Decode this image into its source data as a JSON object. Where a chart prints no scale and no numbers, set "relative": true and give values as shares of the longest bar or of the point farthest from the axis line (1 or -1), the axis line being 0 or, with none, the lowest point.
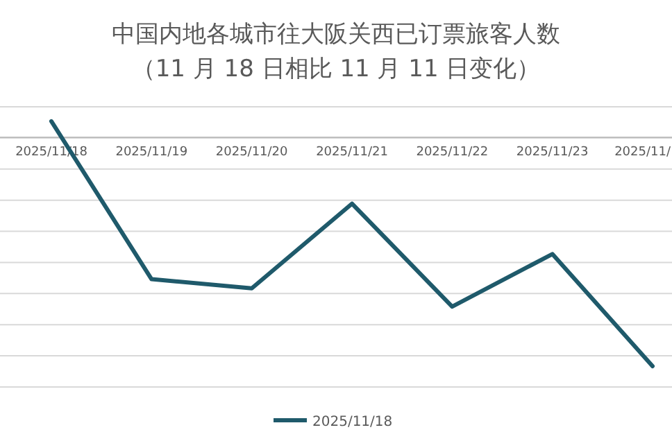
{
  "chart_data": {
    "type": "line",
    "title": "中国内地各城市往大阪关西已订票旅客人数",
    "subtitle": "（11 月 18 日相比 11 月 11 日变化）",
    "categories": [
      "2025/11/18",
      "2025/11/19",
      "2025/11/20",
      "2025/11/21",
      "2025/11/22",
      "2025/11/23",
      "2025/11/"
    ],
    "relative": true,
    "grid": true,
    "legend": "bottom",
    "series": [
      {
        "name": "2025/11/18",
        "color": "#1f5a6b",
        "values": [
          0.07,
          -0.62,
          -0.66,
          -0.29,
          -0.74,
          -0.51,
          -1
        ]
      }
    ]
  }
}
